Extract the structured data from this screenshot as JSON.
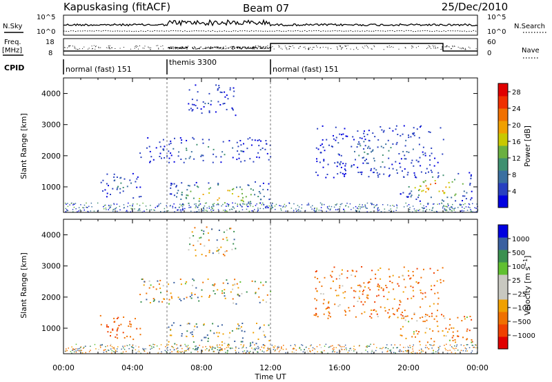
{
  "header": {
    "station": "Kapuskasing (fitACF)",
    "beam": "Beam 07",
    "date": "25/Dec/2010"
  },
  "noise_panel": {
    "left_label": "N.Sky",
    "right_label": "N.Search",
    "left_ticks": [
      "10^5",
      "10^0"
    ],
    "right_ticks": [
      "10^5",
      "10^0"
    ]
  },
  "freq_panel": {
    "left_label_top": "Freq.",
    "left_label_bottom": "[MHz]",
    "right_label": "Nave",
    "left_ticks": [
      "18",
      "8"
    ],
    "right_ticks": [
      "60",
      "0"
    ]
  },
  "cpid_panel": {
    "label": "CPID",
    "modes": [
      {
        "name": "normal (fast) 151",
        "start_hour": 0,
        "end_hour": 6
      },
      {
        "name": "themis 3300",
        "start_hour": 6,
        "end_hour": 12
      },
      {
        "name": "normal (fast) 151",
        "start_hour": 12,
        "end_hour": 24
      }
    ]
  },
  "colors": {
    "power_scale": [
      "#0000e0",
      "#2840c0",
      "#3a6fa0",
      "#3f9070",
      "#6ab040",
      "#c8c800",
      "#f0a000",
      "#f07000",
      "#f03000",
      "#e00000"
    ],
    "velocity_scale": [
      "#e00000",
      "#f04000",
      "#f07000",
      "#f0a000",
      "#c8c8c0",
      "#c8c8c0",
      "#60c030",
      "#3a9050",
      "#3a60a0",
      "#0000e0"
    ]
  },
  "chart_data": [
    {
      "type": "heatmap",
      "name": "power",
      "ylabel": "Slant Range [km]",
      "xlabel": "Time UT",
      "x_ticks": [
        "00:00",
        "04:00",
        "08:00",
        "12:00",
        "16:00",
        "20:00",
        "00:00"
      ],
      "x_range_hours": [
        0,
        24
      ],
      "y_ticks": [
        1000,
        2000,
        3000,
        4000
      ],
      "ylim": [
        180,
        4500
      ],
      "colorbar": {
        "label": "Power [dB]",
        "ticks": [
          4,
          8,
          12,
          16,
          20,
          24,
          28
        ],
        "range": [
          0,
          30
        ]
      },
      "regions": [
        {
          "t0": 2.0,
          "t1": 4.5,
          "r0": 650,
          "r1": 1500,
          "level": 8
        },
        {
          "t0": 4.4,
          "t1": 12.0,
          "r0": 1800,
          "r1": 2600,
          "level": 10
        },
        {
          "t0": 6.0,
          "t1": 12.0,
          "r0": 250,
          "r1": 1200,
          "level": 22
        },
        {
          "t0": 7.2,
          "t1": 10.0,
          "r0": 3300,
          "r1": 4300,
          "level": 6
        },
        {
          "t0": 14.5,
          "t1": 22.0,
          "r0": 1300,
          "r1": 3000,
          "level": 8
        },
        {
          "t0": 19.5,
          "t1": 23.8,
          "r0": 550,
          "r1": 1500,
          "level": 24
        }
      ]
    },
    {
      "type": "heatmap",
      "name": "velocity",
      "ylabel": "Slant Range [km]",
      "xlabel": "Time UT",
      "x_ticks": [
        "00:00",
        "04:00",
        "08:00",
        "12:00",
        "16:00",
        "20:00",
        "00:00"
      ],
      "x_range_hours": [
        0,
        24
      ],
      "y_ticks": [
        1000,
        2000,
        3000,
        4000
      ],
      "ylim": [
        180,
        4500
      ],
      "colorbar": {
        "label": "Velocity [m s^-1]",
        "ticks": [
          "1000",
          "500",
          "100",
          "25",
          "−25",
          "−100",
          "−500",
          "−1000"
        ]
      },
      "regions": [
        {
          "t0": 2.0,
          "t1": 4.5,
          "r0": 650,
          "r1": 1500,
          "level": -300
        },
        {
          "t0": 4.4,
          "t1": 12.0,
          "r0": 1800,
          "r1": 2600,
          "level": 0
        },
        {
          "t0": 6.0,
          "t1": 12.0,
          "r0": 250,
          "r1": 1200,
          "level": 100
        },
        {
          "t0": 7.2,
          "t1": 10.0,
          "r0": 3300,
          "r1": 4300,
          "level": 0
        },
        {
          "t0": 14.5,
          "t1": 22.0,
          "r0": 1300,
          "r1": 3000,
          "level": -200
        },
        {
          "t0": 19.5,
          "t1": 23.8,
          "r0": 550,
          "r1": 1500,
          "level": -150
        }
      ]
    }
  ]
}
